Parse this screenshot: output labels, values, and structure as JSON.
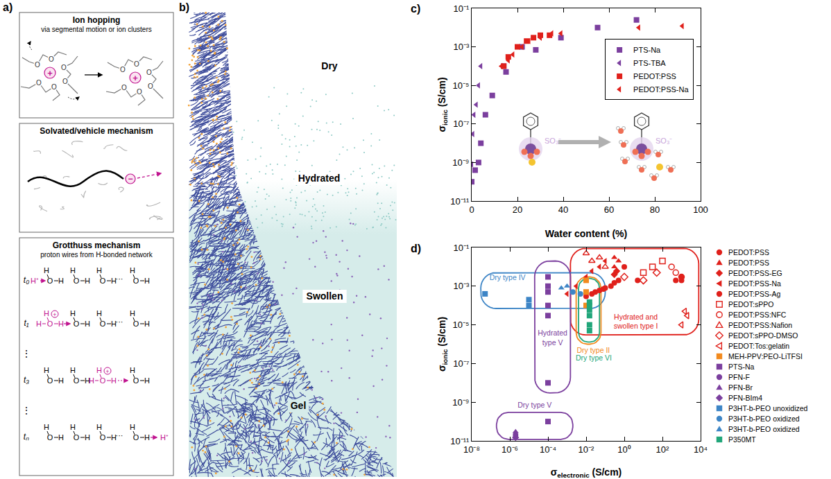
{
  "panel_letters": [
    "a)",
    "b)",
    "c)",
    "d)"
  ],
  "figure": {
    "a": {
      "boxes": [
        {
          "title": "Ion hopping",
          "subtitle": "via segmental motion or ion clusters"
        },
        {
          "title": "Solvated/vehicle mechanism"
        },
        {
          "title": "Grotthuss mechanism",
          "subtitle": "proton wires from H-bonded network"
        }
      ],
      "oxygen": "O",
      "hydrogen": "H",
      "cation": "+",
      "anion": "−",
      "proton": "H⁺",
      "time_labels": [
        "t₀",
        "t₁",
        "t₃",
        "tₙ"
      ],
      "ellipsis": "⋮",
      "dots": "···"
    },
    "b": {
      "stages": [
        "Dry",
        "Hydrated",
        "Swollen",
        "Gel"
      ]
    }
  },
  "chart_data": [
    {
      "type": "scatter",
      "log": "y",
      "grid": false,
      "legend": "upper right",
      "xlabel": "Water content (%)",
      "ylabel": {
        "symbol": "σ",
        "subscript": "ionic",
        "unit": "(S/cm)"
      },
      "xlim": [
        0,
        100
      ],
      "xticks": [
        0,
        20,
        40,
        60,
        80,
        100
      ],
      "ylim": [
        1e-11,
        0.1
      ],
      "yticks": [
        {
          "value": 1e-11,
          "label": "10⁻¹¹"
        },
        {
          "value": 1e-09,
          "label": "10⁻⁹"
        },
        {
          "value": 1e-07,
          "label": "10⁻⁷"
        },
        {
          "value": 1e-05,
          "label": "10⁻⁵"
        },
        {
          "value": 0.001,
          "label": "10⁻³"
        },
        {
          "value": 0.1,
          "label": "10⁻¹"
        }
      ],
      "annotations": [
        "SO₃⁻",
        "SO₃⁻"
      ],
      "series": [
        {
          "name": "PTS-Na",
          "color": "#7b3f9e",
          "marker": "square",
          "x": [
            0,
            1.5,
            3,
            4,
            6,
            9,
            14,
            15,
            22,
            28,
            39,
            55,
            72
          ],
          "values": [
            1e-10,
            4e-10,
            1e-09,
            1e-08,
            3e-07,
            3e-06,
            0.0001,
            5e-05,
            0.001,
            0.0007,
            0.003,
            0.01,
            0.025
          ]
        },
        {
          "name": "PTS-TBA",
          "color": "#7b3f9e",
          "marker": "triangle-left",
          "x": [
            0,
            0.5,
            1,
            2,
            3,
            4
          ],
          "values": [
            8e-10,
            3e-08,
            3e-07,
            1e-06,
            1e-05,
            0.0001
          ]
        },
        {
          "name": "PEDOT:PSS",
          "color": "#e0201b",
          "marker": "square",
          "x": [
            14,
            16,
            20,
            24,
            27,
            30,
            34
          ],
          "values": [
            0.0001,
            0.0003,
            0.001,
            0.002,
            0.003,
            0.004,
            0.004
          ]
        },
        {
          "name": "PEDOT:PSS-Na",
          "color": "#e0201b",
          "marker": "triangle-left",
          "x": [
            13,
            16,
            18,
            22,
            25,
            30,
            35,
            39,
            73,
            92
          ],
          "values": [
            0.0001,
            0.0002,
            0.0004,
            0.001,
            0.002,
            0.003,
            0.005,
            0.005,
            0.01,
            0.012
          ]
        }
      ]
    },
    {
      "type": "scatter",
      "log": true,
      "grid": false,
      "legend": "right",
      "xlabel": {
        "symbol": "σ",
        "subscript": "electronic",
        "unit": "(S/cm)"
      },
      "ylabel": {
        "symbol": "σ",
        "subscript": "ionic",
        "unit": "(S/cm)"
      },
      "xlim": [
        1e-08,
        10000
      ],
      "xticks": [
        {
          "value": 1e-08,
          "label": "10⁻⁸"
        },
        {
          "value": 1e-06,
          "label": "10⁻⁶"
        },
        {
          "value": 0.0001,
          "label": "10⁻⁴"
        },
        {
          "value": 0.01,
          "label": "10⁻²"
        },
        {
          "value": 1,
          "label": "10⁰"
        },
        {
          "value": 100,
          "label": "10²"
        },
        {
          "value": 10000,
          "label": "10⁴"
        }
      ],
      "ylim": [
        1e-11,
        0.1
      ],
      "yticks": [
        {
          "value": 1e-11,
          "label": "10⁻¹¹"
        },
        {
          "value": 1e-09,
          "label": "10⁻⁹"
        },
        {
          "value": 1e-07,
          "label": "10⁻⁷"
        },
        {
          "value": 1e-05,
          "label": "10⁻⁵"
        },
        {
          "value": 0.001,
          "label": "10⁻³"
        },
        {
          "value": 0.1,
          "label": "10⁻¹"
        }
      ],
      "regions": [
        {
          "label": "Hydrated and swollen type I",
          "color": "#e0201b",
          "x": [
            0.0015,
            8000
          ],
          "y": [
            3e-06,
            0.09
          ]
        },
        {
          "label": "Dry type IV",
          "color": "#3d85c6",
          "x": [
            3e-08,
            0.1
          ],
          "y": [
            7e-05,
            0.005
          ]
        },
        {
          "label": "Hydrated type V",
          "color": "#7b3f9e",
          "x": [
            2e-05,
            0.0015
          ],
          "y": [
            3e-09,
            0.02
          ]
        },
        {
          "label": "Dry type II",
          "color": "#f28a1e",
          "x": [
            0.003,
            0.06
          ],
          "y": [
            1e-06,
            0.003
          ]
        },
        {
          "label": "Dry type VI",
          "color": "#21a67a",
          "x": [
            0.004,
            0.05
          ],
          "y": [
            1.3e-06,
            0.0025
          ]
        },
        {
          "label": "Dry type V",
          "color": "#7b3f9e",
          "x": [
            2e-07,
            0.002
          ],
          "y": [
            1.2e-11,
            3e-10
          ]
        }
      ],
      "series": [
        {
          "name": "PEDOT:PSS",
          "color": "#e0201b",
          "marker": "circle",
          "x": [
            0.01,
            0.02,
            0.03,
            0.05,
            0.08,
            0.1,
            0.2,
            0.3,
            0.5,
            1,
            5,
            1000
          ],
          "values": [
            0.0003,
            0.0004,
            0.0005,
            0.0006,
            0.0007,
            0.0008,
            0.001,
            0.0015,
            0.002,
            0.01,
            0.002,
            0.002
          ]
        },
        {
          "name": "PEDOT:PSS",
          "color": "#e0201b",
          "marker": "triangle-up",
          "x": [
            0.3,
            0.3,
            0.5
          ],
          "values": [
            0.03,
            0.01,
            0.02
          ]
        },
        {
          "name": "PEDOT:PSS-EG",
          "color": "#e0201b",
          "marker": "diamond",
          "x": [
            0.3,
            0.4
          ],
          "values": [
            0.004,
            0.006
          ]
        },
        {
          "name": "PEDOT:PSS-Na",
          "color": "#e0201b",
          "marker": "triangle-left",
          "x": [
            0.001,
            0.003,
            0.01,
            0.02,
            0.05,
            0.1
          ],
          "values": [
            0.0004,
            0.001,
            0.003,
            0.006,
            0.01,
            0.02
          ]
        },
        {
          "name": "PEDOT:PSS-Ag",
          "color": "#e0201b",
          "marker": "circle",
          "x": [
            500,
            1000
          ],
          "values": [
            0.002,
            0.003
          ]
        },
        {
          "name": "PEDOT:sPPO",
          "color": "#e0201b",
          "marker": "square-open",
          "x": [
            10,
            30,
            100
          ],
          "values": [
            0.005,
            0.01,
            0.02
          ]
        },
        {
          "name": "PEDOT:PSS:NFC",
          "color": "#e0201b",
          "marker": "circle-open",
          "x": [
            300,
            500,
            1000
          ],
          "values": [
            0.01,
            0.005,
            0.003
          ]
        },
        {
          "name": "PEDOT:PSS:Nafion",
          "color": "#e0201b",
          "marker": "triangle-up-open",
          "x": [
            0.01,
            0.02,
            0.05,
            0.1
          ],
          "values": [
            0.05,
            0.02,
            0.03,
            0.01
          ]
        },
        {
          "name": "PEDOT:sPPO-DMSO",
          "color": "#e0201b",
          "marker": "diamond-open",
          "x": [
            1,
            10,
            50
          ],
          "values": [
            0.003,
            0.002,
            0.005
          ]
        },
        {
          "name": "PEDOT:Tos:gelatin",
          "color": "#e0201b",
          "marker": "triangle-left-open",
          "x": [
            1000,
            1500,
            2000
          ],
          "values": [
            1e-05,
            5e-05,
            3e-05
          ]
        },
        {
          "name": "MEH-PPV:PEO-LiTFSI",
          "color": "#f28a1e",
          "marker": "square",
          "x": [
            0.01,
            0.01,
            0.01
          ],
          "values": [
            0.0001,
            0.0005,
            0.002
          ]
        },
        {
          "name": "PTS-Na",
          "color": "#7b3f9e",
          "marker": "square",
          "x": [
            0.0001,
            0.0001,
            0.0001,
            0.0001,
            0.0001,
            0.0001,
            0.0001
          ],
          "values": [
            0.003,
            0.001,
            0.0005,
            0.0001,
            3e-05,
            1e-08,
            1e-10
          ]
        },
        {
          "name": "PFN-F",
          "color": "#7b3f9e",
          "marker": "circle",
          "x": [
            2e-06
          ],
          "values": [
            2e-11
          ]
        },
        {
          "name": "PFN-Br",
          "color": "#7b3f9e",
          "marker": "triangle-up",
          "x": [
            2e-06
          ],
          "values": [
            3e-11
          ]
        },
        {
          "name": "PFN-BIm4",
          "color": "#7b3f9e",
          "marker": "diamond",
          "x": [
            2e-06
          ],
          "values": [
            1.5e-11
          ]
        },
        {
          "name": "P3HT-b-PEO unoxidized",
          "color": "#3d85c6",
          "marker": "square",
          "x": [
            5e-08,
            1e-05,
            1e-05
          ],
          "values": [
            0.0004,
            0.0002,
            0.0001
          ]
        },
        {
          "name": "P3HT-b-PEO oxidized",
          "color": "#3d85c6",
          "marker": "circle",
          "x": [
            0.002,
            0.005
          ],
          "values": [
            0.0005,
            0.0004
          ]
        },
        {
          "name": "P3HT-b-PEO oxidized",
          "color": "#3d85c6",
          "marker": "triangle-up",
          "x": [
            0.0005,
            0.001
          ],
          "values": [
            0.0008,
            0.001
          ]
        },
        {
          "name": "P350MT",
          "color": "#21a67a",
          "marker": "square",
          "x": [
            0.015,
            0.015,
            0.015,
            0.015,
            0.015,
            0.015
          ],
          "values": [
            5e-06,
            1e-05,
            3e-05,
            6e-05,
            0.0001,
            0.00015
          ]
        }
      ]
    }
  ]
}
